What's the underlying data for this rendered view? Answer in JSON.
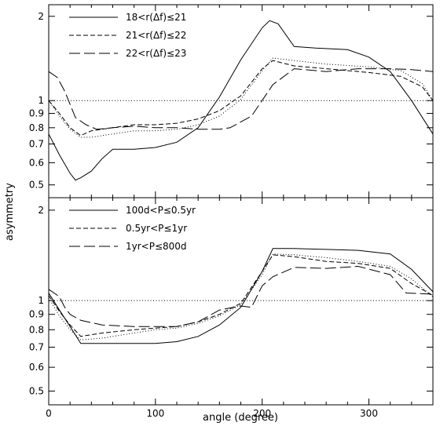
{
  "xlabel": "angle (degree)",
  "ylabel": "asymmetry",
  "chart_data": [
    {
      "type": "line",
      "panel": "top",
      "xlim": [
        0,
        360
      ],
      "ylim": [
        0.45,
        2.2
      ],
      "yscale": "log",
      "xticks": [
        0,
        100,
        200,
        300
      ],
      "yticks": [
        0.5,
        0.6,
        0.7,
        0.8,
        0.9,
        1,
        2
      ],
      "yticklabels": [
        "0.5",
        "0.6",
        "0.7",
        "0.8",
        "0.9",
        "1",
        "2"
      ],
      "reference_line": {
        "y": 1,
        "style": "dotted"
      },
      "legend_position": "top-left",
      "series": [
        {
          "name": "18<r(Δf)≤21",
          "style": "solid",
          "x": [
            0,
            10,
            20,
            25,
            30,
            40,
            50,
            60,
            80,
            100,
            120,
            140,
            160,
            180,
            200,
            207,
            215,
            230,
            250,
            280,
            300,
            320,
            340,
            360
          ],
          "y": [
            0.76,
            0.64,
            0.55,
            0.52,
            0.53,
            0.56,
            0.62,
            0.67,
            0.67,
            0.68,
            0.71,
            0.8,
            1.03,
            1.4,
            1.82,
            1.93,
            1.88,
            1.56,
            1.54,
            1.52,
            1.43,
            1.27,
            1.0,
            0.76
          ]
        },
        {
          "name": "21<r(Δf)≤22",
          "style": "short-dash",
          "x": [
            0,
            10,
            20,
            30,
            40,
            60,
            80,
            100,
            120,
            140,
            160,
            180,
            200,
            210,
            230,
            260,
            300,
            330,
            350,
            360
          ],
          "y": [
            1.0,
            0.9,
            0.8,
            0.75,
            0.78,
            0.8,
            0.82,
            0.82,
            0.83,
            0.86,
            0.92,
            1.04,
            1.3,
            1.39,
            1.33,
            1.3,
            1.26,
            1.22,
            1.12,
            1.0
          ]
        },
        {
          "name": "22<r(Δf)≤23",
          "style": "long-dash",
          "x": [
            0,
            8,
            15,
            25,
            35,
            45,
            60,
            80,
            100,
            120,
            140,
            160,
            170,
            190,
            210,
            230,
            260,
            290,
            320,
            340,
            360
          ],
          "y": [
            1.27,
            1.21,
            1.08,
            0.87,
            0.82,
            0.79,
            0.8,
            0.81,
            0.8,
            0.8,
            0.79,
            0.79,
            0.8,
            0.88,
            1.14,
            1.3,
            1.27,
            1.3,
            1.3,
            1.29,
            1.27
          ]
        },
        {
          "name": "",
          "style": "dotted",
          "x": [
            0,
            10,
            20,
            30,
            40,
            60,
            80,
            100,
            120,
            140,
            160,
            180,
            200,
            210,
            230,
            260,
            300,
            330,
            350,
            360
          ],
          "y": [
            1.0,
            0.88,
            0.79,
            0.74,
            0.74,
            0.76,
            0.78,
            0.78,
            0.79,
            0.82,
            0.88,
            1.01,
            1.28,
            1.42,
            1.39,
            1.35,
            1.32,
            1.28,
            1.15,
            1.0
          ]
        }
      ]
    },
    {
      "type": "line",
      "panel": "bottom",
      "xlim": [
        0,
        360
      ],
      "ylim": [
        0.45,
        2.2
      ],
      "yscale": "log",
      "xticks": [
        0,
        100,
        200,
        300
      ],
      "xticklabels": [
        "0",
        "100",
        "200",
        "300"
      ],
      "yticks": [
        0.5,
        0.6,
        0.7,
        0.8,
        0.9,
        1,
        2
      ],
      "yticklabels": [
        "0.5",
        "0.6",
        "0.7",
        "0.8",
        "0.9",
        "1",
        "2"
      ],
      "reference_line": {
        "y": 1,
        "style": "dotted"
      },
      "legend_position": "top-left",
      "series": [
        {
          "name": "100d<P≤0.5yr",
          "style": "solid",
          "x": [
            0,
            10,
            20,
            30,
            50,
            80,
            100,
            120,
            140,
            160,
            180,
            200,
            210,
            230,
            260,
            290,
            320,
            340,
            360
          ],
          "y": [
            1.06,
            0.93,
            0.82,
            0.72,
            0.72,
            0.72,
            0.72,
            0.73,
            0.76,
            0.83,
            0.95,
            1.25,
            1.49,
            1.49,
            1.48,
            1.47,
            1.43,
            1.27,
            1.07
          ]
        },
        {
          "name": "0.5yr<P≤1yr",
          "style": "short-dash",
          "x": [
            0,
            10,
            20,
            30,
            50,
            80,
            100,
            120,
            140,
            160,
            180,
            200,
            210,
            230,
            260,
            290,
            320,
            340,
            360
          ],
          "y": [
            1.04,
            0.92,
            0.83,
            0.76,
            0.78,
            0.8,
            0.81,
            0.82,
            0.85,
            0.9,
            0.98,
            1.25,
            1.42,
            1.4,
            1.35,
            1.33,
            1.28,
            1.14,
            1.04
          ]
        },
        {
          "name": "1yr<P≤800d",
          "style": "long-dash",
          "x": [
            0,
            10,
            15,
            20,
            30,
            50,
            80,
            100,
            120,
            140,
            160,
            180,
            190,
            200,
            210,
            230,
            260,
            290,
            320,
            335,
            360
          ],
          "y": [
            1.09,
            1.03,
            0.95,
            0.9,
            0.86,
            0.83,
            0.82,
            0.82,
            0.82,
            0.85,
            0.93,
            0.96,
            0.95,
            1.12,
            1.2,
            1.29,
            1.28,
            1.3,
            1.22,
            1.06,
            1.05
          ]
        },
        {
          "name": "",
          "style": "dotted",
          "x": [
            0,
            10,
            20,
            30,
            50,
            80,
            100,
            120,
            140,
            160,
            180,
            200,
            210,
            230,
            260,
            290,
            320,
            340,
            360
          ],
          "y": [
            1.02,
            0.89,
            0.8,
            0.74,
            0.75,
            0.78,
            0.8,
            0.81,
            0.84,
            0.89,
            0.97,
            1.22,
            1.43,
            1.42,
            1.39,
            1.35,
            1.3,
            1.18,
            1.03
          ]
        }
      ]
    }
  ]
}
